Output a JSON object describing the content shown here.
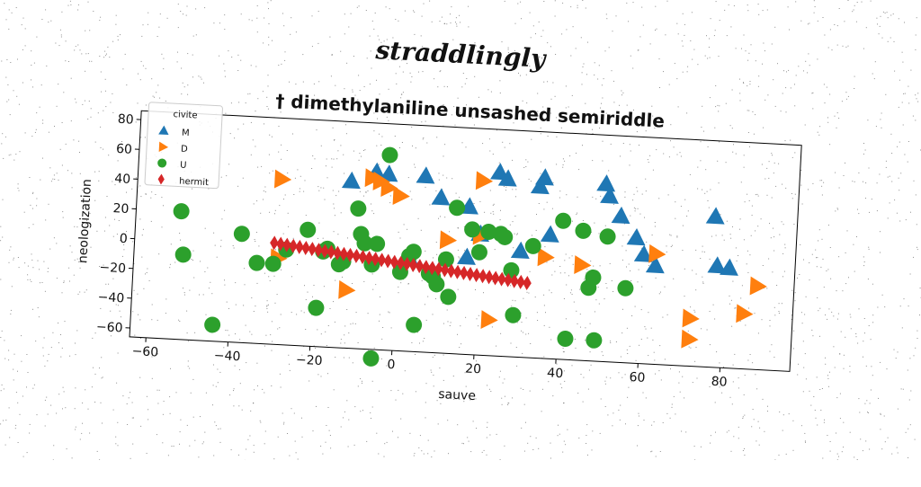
{
  "suptitle": "straddlingly",
  "chart_data": {
    "type": "scatter",
    "title": "† dimethylaniline unsashed semiriddle",
    "xlabel": "sauve",
    "ylabel": "neologization",
    "xlim": [
      -64,
      97
    ],
    "ylim": [
      -66,
      86
    ],
    "xticks": [
      -60,
      -40,
      -20,
      0,
      20,
      40,
      60,
      80
    ],
    "yticks": [
      -60,
      -40,
      -20,
      0,
      20,
      40,
      60,
      80
    ],
    "grid": false,
    "legend": {
      "title": "civite",
      "placement": "top-left"
    },
    "series": [
      {
        "name": "M",
        "marker": "triangle-up",
        "color": "#1f77b4",
        "points": [
          [
            -12,
            46
          ],
          [
            -6,
            53
          ],
          [
            -3,
            52
          ],
          [
            6,
            52
          ],
          [
            10,
            38
          ],
          [
            17,
            33
          ],
          [
            20,
            15
          ],
          [
            24,
            57
          ],
          [
            26,
            53
          ],
          [
            30,
            5
          ],
          [
            34,
            49
          ],
          [
            35,
            55
          ],
          [
            37,
            17
          ],
          [
            50,
            53
          ],
          [
            51,
            45
          ],
          [
            54,
            32
          ],
          [
            58,
            18
          ],
          [
            60,
            7
          ],
          [
            63,
            0
          ],
          [
            77,
            35
          ],
          [
            78,
            2
          ],
          [
            81,
            1
          ],
          [
            17,
            -1
          ],
          [
            3,
            -3
          ]
        ]
      },
      {
        "name": "D",
        "marker": "triangle-right",
        "color": "#ff7f0e",
        "points": [
          [
            -29,
            45
          ],
          [
            -7,
            49
          ],
          [
            -5,
            47
          ],
          [
            -3,
            43
          ],
          [
            0,
            38
          ],
          [
            12,
            10
          ],
          [
            20,
            51
          ],
          [
            20,
            14
          ],
          [
            23,
            -42
          ],
          [
            36,
            2
          ],
          [
            45,
            -2
          ],
          [
            63,
            8
          ],
          [
            72,
            -34
          ],
          [
            72,
            -48
          ],
          [
            85,
            -29
          ],
          [
            88,
            -10
          ],
          [
            -29,
            -8
          ],
          [
            -12,
            -27
          ]
        ]
      },
      {
        "name": "U",
        "marker": "circle",
        "color": "#2ca02c",
        "points": [
          [
            -53,
            20
          ],
          [
            -52,
            -9
          ],
          [
            -44,
            -55
          ],
          [
            -38,
            7
          ],
          [
            -34,
            -12
          ],
          [
            -30,
            -12
          ],
          [
            -27,
            -2
          ],
          [
            -22,
            12
          ],
          [
            -19,
            -40
          ],
          [
            -18,
            -2
          ],
          [
            -17,
            0
          ],
          [
            -14,
            -10
          ],
          [
            -13,
            -8
          ],
          [
            -10,
            28
          ],
          [
            -9,
            11
          ],
          [
            -8,
            5
          ],
          [
            -6,
            -9
          ],
          [
            -5,
            5
          ],
          [
            -3,
            65
          ],
          [
            1,
            -13
          ],
          [
            3,
            -2
          ],
          [
            4,
            1
          ],
          [
            5,
            -48
          ],
          [
            8,
            -13
          ],
          [
            9,
            -15
          ],
          [
            10,
            -20
          ],
          [
            12,
            -3
          ],
          [
            13,
            -28
          ],
          [
            14,
            32
          ],
          [
            18,
            18
          ],
          [
            20,
            3
          ],
          [
            22,
            17
          ],
          [
            25,
            16
          ],
          [
            26,
            14
          ],
          [
            28,
            -8
          ],
          [
            29,
            -38
          ],
          [
            33,
            9
          ],
          [
            40,
            27
          ],
          [
            42,
            -52
          ],
          [
            45,
            21
          ],
          [
            47,
            -17
          ],
          [
            48,
            -10
          ],
          [
            49,
            -52
          ],
          [
            51,
            18
          ],
          [
            56,
            -16
          ],
          [
            -5,
            -72
          ]
        ]
      },
      {
        "name": "hermit",
        "marker": "diamond",
        "color": "#d62728",
        "style": "line-of-markers",
        "points": [
          [
            -30,
            2
          ],
          [
            32,
            -16
          ]
        ]
      }
    ]
  }
}
